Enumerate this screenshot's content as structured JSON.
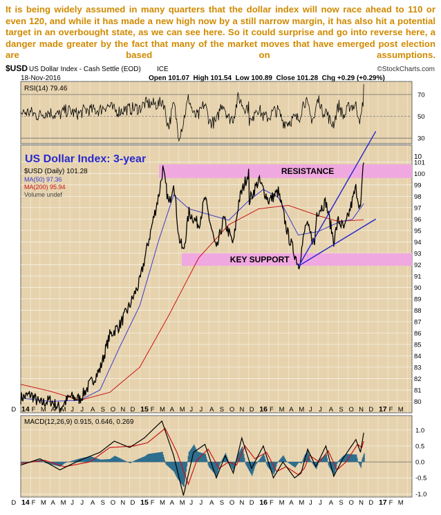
{
  "commentary": "It is being widely assumed in many quarters that the dollar index will now race ahead to 110 or even 120, and while it has made a new high now by a still narrow margin, it has also hit a potential target in an overbought state, as we can see here. So it could surprise and go into reverse here, a danger made greater by the fact that many of the market moves that have emerged post election are based on assumptions.",
  "header": {
    "symbol": "$USD",
    "name": "US Dollar Index - Cash Settle (EOD)",
    "exchange": "ICE",
    "source": "©StockCharts.com",
    "date": "18-Nov-2016",
    "quote": "Open 101.07  High 101.54  Low 100.89  Close 101.28  Chg +0.29 (+0.29%)"
  },
  "colors": {
    "panel_bg": "#e6d3ae",
    "price": "#000000",
    "ma50": "#3a3acc",
    "ma200": "#c81414",
    "zone": "#f0a8e0",
    "channel": "#2a2acc",
    "title": "#2a2acc",
    "macd_hist": "#2e6e8e",
    "rsi_fill": "#4d6a3a"
  },
  "chart_data": [
    {
      "panel": "rsi",
      "type": "line",
      "legend": "RSI(14) 79.46",
      "y_ticks": [
        30,
        50,
        70
      ],
      "ylim": [
        25,
        82
      ],
      "overbought": 70,
      "oversold": 30,
      "last_value": 79.46
    },
    {
      "panel": "price",
      "type": "line",
      "title": "US Dollar Index: 3-year",
      "legend": [
        "$USD (Daily) 101.28",
        "MA(50) 97.36",
        "MA(200) 95.94",
        "Volume undef"
      ],
      "ylim": [
        79,
        102.5
      ],
      "y_ticks": [
        80,
        81,
        82,
        83,
        84,
        85,
        86,
        87,
        88,
        89,
        90,
        91,
        92,
        93,
        94,
        95,
        96,
        97,
        98,
        99,
        100,
        101
      ],
      "y_extra_tick": "10",
      "time_range": [
        "2014-01-01",
        "2017-04-15"
      ],
      "x_tick_labels": [
        "D",
        "14",
        "F",
        "M",
        "A",
        "M",
        "J",
        "J",
        "A",
        "S",
        "O",
        "N",
        "D",
        "15",
        "F",
        "M",
        "A",
        "M",
        "J",
        "J",
        "A",
        "S",
        "O",
        "N",
        "D",
        "16",
        "F",
        "M",
        "A",
        "M",
        "J",
        "J",
        "A",
        "S",
        "O",
        "N",
        "D",
        "17",
        "F",
        "M"
      ],
      "series": [
        {
          "name": "$USD (Daily)",
          "points": [
            [
              "2014-01-01",
              80.3
            ],
            [
              "2014-02-01",
              80.6
            ],
            [
              "2014-03-01",
              79.8
            ],
            [
              "2014-04-01",
              80.1
            ],
            [
              "2014-05-01",
              79.4
            ],
            [
              "2014-06-01",
              80.4
            ],
            [
              "2014-07-01",
              80.2
            ],
            [
              "2014-08-01",
              81.5
            ],
            [
              "2014-09-01",
              82.8
            ],
            [
              "2014-10-01",
              85.8
            ],
            [
              "2014-11-01",
              86.7
            ],
            [
              "2014-12-01",
              88.4
            ],
            [
              "2015-01-01",
              90.5
            ],
            [
              "2015-02-01",
              94.6
            ],
            [
              "2015-03-01",
              98.2
            ],
            [
              "2015-03-13",
              100.4
            ],
            [
              "2015-04-01",
              97.2
            ],
            [
              "2015-04-15",
              99.4
            ],
            [
              "2015-05-01",
              94.4
            ],
            [
              "2015-05-15",
              93.1
            ],
            [
              "2015-06-01",
              96.6
            ],
            [
              "2015-07-01",
              95.5
            ],
            [
              "2015-07-20",
              97.8
            ],
            [
              "2015-08-24",
              93.2
            ],
            [
              "2015-09-15",
              96.0
            ],
            [
              "2015-10-15",
              93.8
            ],
            [
              "2015-11-01",
              97.6
            ],
            [
              "2015-12-01",
              100.2
            ],
            [
              "2015-12-03",
              97.6
            ],
            [
              "2016-01-01",
              99.4
            ],
            [
              "2016-02-01",
              97.6
            ],
            [
              "2016-03-01",
              98.4
            ],
            [
              "2016-04-01",
              94.5
            ],
            [
              "2016-05-03",
              91.9
            ],
            [
              "2016-05-25",
              95.6
            ],
            [
              "2016-06-20",
              93.8
            ],
            [
              "2016-06-27",
              96.6
            ],
            [
              "2016-07-25",
              97.5
            ],
            [
              "2016-08-18",
              94.1
            ],
            [
              "2016-09-01",
              95.9
            ],
            [
              "2016-09-20",
              95.1
            ],
            [
              "2016-10-25",
              98.7
            ],
            [
              "2016-11-08",
              96.8
            ],
            [
              "2016-11-18",
              101.28
            ]
          ]
        },
        {
          "name": "MA(50)",
          "points": [
            [
              "2014-01-01",
              80.3
            ],
            [
              "2014-04-01",
              80.0
            ],
            [
              "2014-07-01",
              80.1
            ],
            [
              "2014-09-01",
              81.0
            ],
            [
              "2014-11-01",
              84.8
            ],
            [
              "2015-01-01",
              88.4
            ],
            [
              "2015-03-01",
              94.2
            ],
            [
              "2015-04-15",
              98.1
            ],
            [
              "2015-06-01",
              96.9
            ],
            [
              "2015-08-01",
              96.4
            ],
            [
              "2015-10-01",
              95.9
            ],
            [
              "2015-12-01",
              97.6
            ],
            [
              "2016-01-15",
              98.6
            ],
            [
              "2016-03-01",
              97.9
            ],
            [
              "2016-05-01",
              94.6
            ],
            [
              "2016-07-01",
              94.9
            ],
            [
              "2016-09-01",
              95.7
            ],
            [
              "2016-10-15",
              96.0
            ],
            [
              "2016-11-18",
              97.36
            ]
          ]
        },
        {
          "name": "MA(200)",
          "points": [
            [
              "2014-01-01",
              81.5
            ],
            [
              "2014-04-01",
              80.9
            ],
            [
              "2014-07-01",
              80.1
            ],
            [
              "2014-10-01",
              80.8
            ],
            [
              "2015-01-01",
              83.0
            ],
            [
              "2015-04-01",
              87.6
            ],
            [
              "2015-07-01",
              92.6
            ],
            [
              "2015-10-01",
              95.5
            ],
            [
              "2016-01-01",
              96.9
            ],
            [
              "2016-04-01",
              97.2
            ],
            [
              "2016-07-01",
              96.3
            ],
            [
              "2016-09-01",
              95.8
            ],
            [
              "2016-11-18",
              95.94
            ]
          ]
        }
      ],
      "zones": [
        {
          "label": "RESISTANCE",
          "from": 99.6,
          "to": 100.8
        },
        {
          "label": "KEY SUPPORT",
          "from": 91.9,
          "to": 93.0
        }
      ],
      "channel": {
        "upper": [
          [
            "2016-05-03",
            91.9
          ],
          [
            "2016-12-25",
            103.7
          ]
        ],
        "lower": [
          [
            "2016-05-03",
            91.9
          ],
          [
            "2016-12-25",
            96.0
          ]
        ]
      }
    },
    {
      "panel": "macd",
      "type": "line",
      "legend": "MACD(12,26,9) 0.915, 0.646, 0.269",
      "ylim": [
        -1.1,
        1.45
      ],
      "y_ticks": [
        -1.0,
        -0.5,
        0.0,
        0.5,
        1.0
      ],
      "x_tick_labels": [
        "D",
        "14",
        "F",
        "M",
        "A",
        "M",
        "J",
        "J",
        "A",
        "S",
        "O",
        "N",
        "D",
        "15",
        "F",
        "M",
        "A",
        "M",
        "J",
        "J",
        "A",
        "S",
        "O",
        "N",
        "D",
        "16",
        "F",
        "M",
        "A",
        "M",
        "J",
        "J",
        "A",
        "S",
        "O",
        "N",
        "D",
        "17",
        "F",
        "M"
      ],
      "series": [
        {
          "name": "MACD",
          "points": [
            [
              "2014-01-01",
              -0.1
            ],
            [
              "2014-03-01",
              0.1
            ],
            [
              "2014-05-01",
              -0.25
            ],
            [
              "2014-07-01",
              0.05
            ],
            [
              "2014-09-01",
              0.3
            ],
            [
              "2014-10-15",
              0.65
            ],
            [
              "2014-12-01",
              0.45
            ],
            [
              "2015-01-15",
              0.75
            ],
            [
              "2015-03-10",
              1.28
            ],
            [
              "2015-04-15",
              0.2
            ],
            [
              "2015-05-15",
              -1.05
            ],
            [
              "2015-06-15",
              0.3
            ],
            [
              "2015-07-20",
              0.55
            ],
            [
              "2015-08-24",
              -0.5
            ],
            [
              "2015-09-20",
              0.2
            ],
            [
              "2015-10-15",
              -0.35
            ],
            [
              "2015-11-10",
              0.75
            ],
            [
              "2015-12-10",
              -0.2
            ],
            [
              "2016-01-15",
              0.5
            ],
            [
              "2016-02-15",
              -0.5
            ],
            [
              "2016-03-15",
              0.0
            ],
            [
              "2016-04-20",
              -0.5
            ],
            [
              "2016-05-10",
              -0.35
            ],
            [
              "2016-05-30",
              0.4
            ],
            [
              "2016-06-24",
              -0.15
            ],
            [
              "2016-07-25",
              0.5
            ],
            [
              "2016-08-18",
              -0.45
            ],
            [
              "2016-09-15",
              0.1
            ],
            [
              "2016-10-25",
              0.7
            ],
            [
              "2016-11-08",
              0.3
            ],
            [
              "2016-11-18",
              0.915
            ]
          ]
        },
        {
          "name": "Signal",
          "points": [
            [
              "2014-01-01",
              -0.05
            ],
            [
              "2014-03-15",
              0.05
            ],
            [
              "2014-05-15",
              -0.15
            ],
            [
              "2014-08-01",
              0.0
            ],
            [
              "2014-10-01",
              0.45
            ],
            [
              "2014-12-15",
              0.5
            ],
            [
              "2015-01-25",
              0.6
            ],
            [
              "2015-03-20",
              1.05
            ],
            [
              "2015-04-25",
              0.3
            ],
            [
              "2015-05-30",
              -0.7
            ],
            [
              "2015-06-25",
              0.05
            ],
            [
              "2015-07-30",
              0.4
            ],
            [
              "2015-09-01",
              -0.2
            ],
            [
              "2015-10-01",
              0.0
            ],
            [
              "2015-10-25",
              -0.1
            ],
            [
              "2015-11-20",
              0.5
            ],
            [
              "2015-12-20",
              0.1
            ],
            [
              "2016-01-25",
              0.3
            ],
            [
              "2016-02-25",
              -0.3
            ],
            [
              "2016-03-25",
              -0.15
            ],
            [
              "2016-05-01",
              -0.4
            ],
            [
              "2016-05-20",
              -0.2
            ],
            [
              "2016-06-05",
              0.2
            ],
            [
              "2016-07-05",
              0.0
            ],
            [
              "2016-08-01",
              0.35
            ],
            [
              "2016-08-28",
              -0.25
            ],
            [
              "2016-09-25",
              0.0
            ],
            [
              "2016-10-30",
              0.55
            ],
            [
              "2016-11-12",
              0.45
            ],
            [
              "2016-11-18",
              0.646
            ]
          ]
        }
      ]
    }
  ]
}
